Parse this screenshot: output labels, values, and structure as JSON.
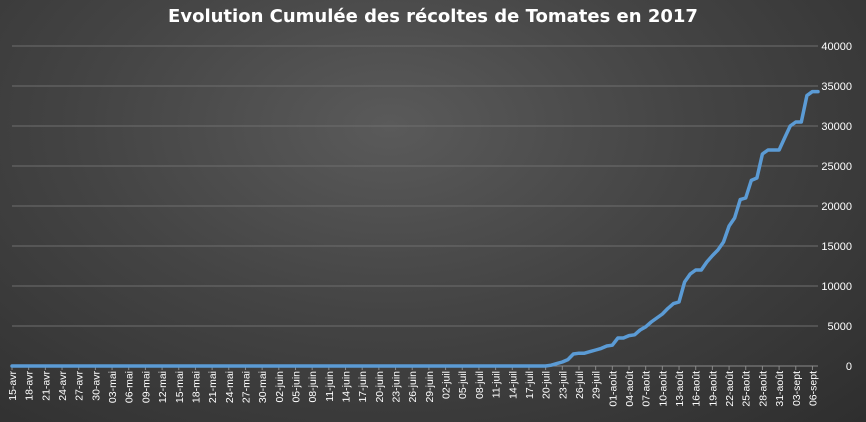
{
  "chart_data": {
    "type": "line",
    "title": "Evolution Cumulée des récoltes de Tomates en 2017",
    "xlabel": "",
    "ylabel": "",
    "ylim": [
      0,
      40000
    ],
    "yticks": [
      0,
      5000,
      10000,
      15000,
      20000,
      25000,
      30000,
      35000,
      40000
    ],
    "y_axis_side": "right",
    "grid": true,
    "legend": "none",
    "colors": {
      "line": "#5b9bd5",
      "grid": "#6e6e6e",
      "text": "#ffffff"
    },
    "x_range": [
      "15-avr",
      "07-sept"
    ],
    "x_tick_labels": [
      "15-avr",
      "18-avr",
      "21-avr",
      "24-avr",
      "27-avr",
      "30-avr",
      "03-mai",
      "06-mai",
      "09-mai",
      "12-mai",
      "15-mai",
      "18-mai",
      "21-mai",
      "24-mai",
      "27-mai",
      "30-mai",
      "02-juin",
      "05-juin",
      "08-juin",
      "11-juin",
      "14-juin",
      "17-juin",
      "20-juin",
      "23-juin",
      "26-juin",
      "29-juin",
      "02-juil",
      "05-juil",
      "08-juil",
      "11-juil",
      "14-juil",
      "17-juil",
      "20-juil",
      "23-juil",
      "26-juil",
      "29-juil",
      "01-août",
      "04-août",
      "07-août",
      "10-août",
      "13-août",
      "16-août",
      "19-août",
      "22-août",
      "25-août",
      "28-août",
      "31-août",
      "03-sept",
      "06-sept"
    ],
    "x": [
      "15-avr",
      "19-juil",
      "20-juil",
      "21-juil",
      "22-juil",
      "23-juil",
      "24-juil",
      "25-juil",
      "26-juil",
      "27-juil",
      "28-juil",
      "29-juil",
      "30-juil",
      "31-juil",
      "01-août",
      "02-août",
      "03-août",
      "04-août",
      "05-août",
      "06-août",
      "07-août",
      "08-août",
      "09-août",
      "10-août",
      "11-août",
      "12-août",
      "13-août",
      "14-août",
      "15-août",
      "16-août",
      "17-août",
      "18-août",
      "19-août",
      "20-août",
      "21-août",
      "22-août",
      "23-août",
      "24-août",
      "25-août",
      "26-août",
      "27-août",
      "28-août",
      "29-août",
      "30-août",
      "31-août",
      "01-sept",
      "02-sept",
      "03-sept",
      "04-sept",
      "05-sept",
      "06-sept",
      "07-sept"
    ],
    "series": [
      {
        "values": [
          0,
          0,
          0,
          100,
          300,
          500,
          800,
          1500,
          1600,
          1600,
          1800,
          2000,
          2200,
          2500,
          2600,
          3500,
          3500,
          3800,
          3900,
          4500,
          4900,
          5500,
          6000,
          6500,
          7200,
          7800,
          8000,
          10500,
          11500,
          12000,
          12000,
          13000,
          13800,
          14500,
          15500,
          17500,
          18500,
          20800,
          21000,
          23200,
          23500,
          26500,
          27000,
          27000,
          27000,
          28500,
          30000,
          30500,
          30500,
          33800,
          34300,
          34300
        ]
      }
    ]
  }
}
